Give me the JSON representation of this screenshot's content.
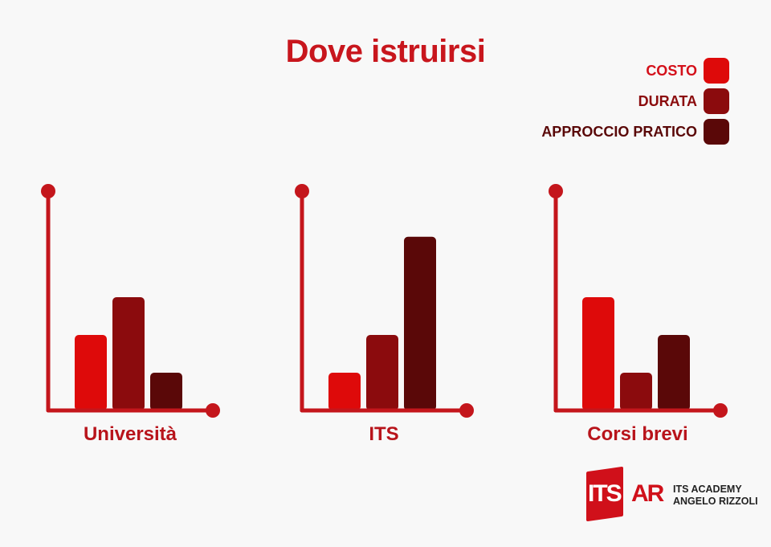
{
  "title": "Dove istruirsi",
  "colors": {
    "title": "#c8161d",
    "axis": "#c4161c",
    "costo": "#de0a0a",
    "durata": "#8b0b0d",
    "approccio": "#5a0808"
  },
  "chart_data": {
    "type": "bar",
    "title": "Dove istruirsi",
    "legend_position": "top-right",
    "grid": false,
    "series": [
      {
        "name": "COSTO",
        "color": "#de0a0a"
      },
      {
        "name": "DURATA",
        "color": "#8b0b0d"
      },
      {
        "name": "APPROCCIO PRATICO",
        "color": "#5a0808"
      }
    ],
    "panels": [
      {
        "label": "Università",
        "values": [
          2,
          3,
          1
        ]
      },
      {
        "label": "ITS",
        "values": [
          1,
          2,
          4.6
        ]
      },
      {
        "label": "Corsi brevi",
        "values": [
          3,
          1,
          2
        ]
      }
    ],
    "ylim": [
      0,
      5
    ]
  },
  "logo": {
    "mark": "ITS",
    "mark_suffix": "AR",
    "line1": "ITS ACADEMY",
    "line2": "ANGELO RIZZOLI"
  }
}
